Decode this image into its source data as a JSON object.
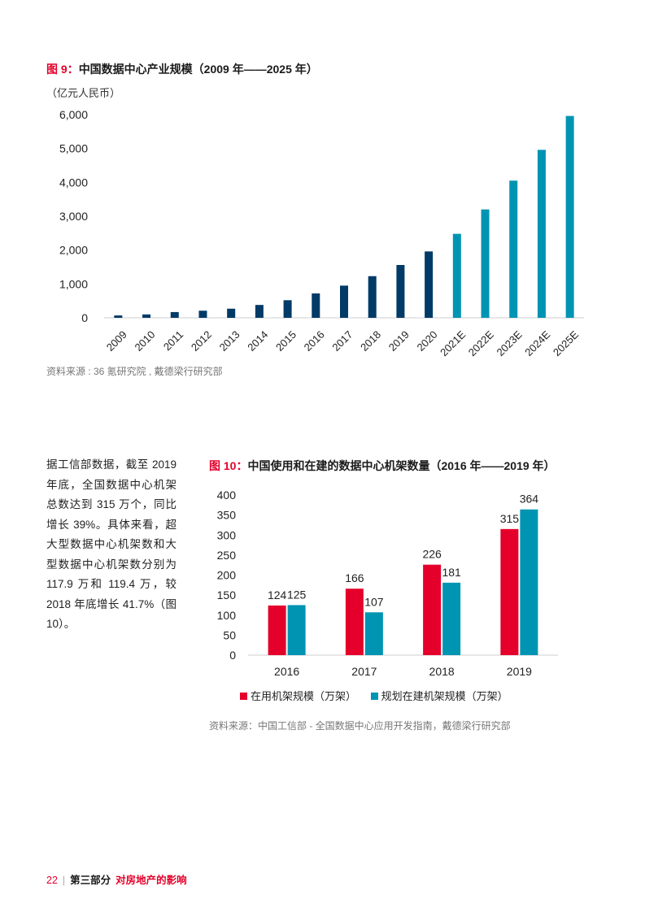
{
  "figure9": {
    "label": "图 9：",
    "title": "中国数据中心产业规模（2009 年——2025 年）",
    "unit": "（亿元人民币）",
    "source": "资料来源 : 36 氪研究院 , 戴德梁行研究部"
  },
  "figure10": {
    "label": "图 10：",
    "title": "中国使用和在建的数据中心机架数量（2016 年——2019 年）",
    "source": "资料来源：中国工信部 - 全国数据中心应用开发指南，戴德梁行研究部"
  },
  "body_text": "据工信部数据，截至 2019 年底，全国数据中心机架总数达到 315 万个，同比增长 39%。具体来看，超大型数据中心机架数和大型数据中心机架数分别为 117.9 万和 119.4 万，较 2018 年底增长 41.7%（图 10）。",
  "footer": {
    "page": "22",
    "separator": "|",
    "part": "第三部分",
    "topic": "对房地产的影响"
  },
  "colors": {
    "accent_red": "#e4002b",
    "navy": "#003a66",
    "teal": "#0094b3"
  },
  "chart_data": [
    {
      "type": "bar",
      "title": "中国数据中心产业规模（2009 年——2025 年）",
      "ylabel": "（亿元人民币）",
      "categories": [
        "2009",
        "2010",
        "2011",
        "2012",
        "2013",
        "2014",
        "2015",
        "2016",
        "2017",
        "2018",
        "2019",
        "2020",
        "2021E",
        "2022E",
        "2023E",
        "2024E",
        "2025E"
      ],
      "values": [
        70,
        100,
        170,
        210,
        270,
        380,
        520,
        720,
        950,
        1230,
        1560,
        1960,
        2480,
        3200,
        4050,
        4960,
        5960
      ],
      "colors": [
        "#003a66",
        "#003a66",
        "#003a66",
        "#003a66",
        "#003a66",
        "#003a66",
        "#003a66",
        "#003a66",
        "#003a66",
        "#003a66",
        "#003a66",
        "#003a66",
        "#0094b3",
        "#0094b3",
        "#0094b3",
        "#0094b3",
        "#0094b3"
      ],
      "ylim": [
        0,
        6000
      ],
      "yticks": [
        "0",
        "1,000",
        "2,000",
        "3,000",
        "4,000",
        "5,000",
        "6,000"
      ],
      "grid": false
    },
    {
      "type": "bar",
      "title": "中国使用和在建的数据中心机架数量（2016 年——2019 年）",
      "categories": [
        "2016",
        "2017",
        "2018",
        "2019"
      ],
      "series": [
        {
          "name": "在用机架规模（万架）",
          "values": [
            124,
            166,
            226,
            315
          ],
          "color": "#e4002b"
        },
        {
          "name": "规划在建机架规模（万架）",
          "values": [
            125,
            107,
            181,
            364
          ],
          "color": "#0094b3"
        }
      ],
      "ylim": [
        0,
        400
      ],
      "yticks": [
        "0",
        "50",
        "100",
        "150",
        "200",
        "250",
        "300",
        "350",
        "400"
      ],
      "legend": "bottom",
      "grid": false
    }
  ]
}
